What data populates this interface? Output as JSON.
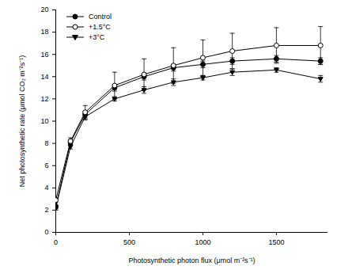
{
  "chart_data": {
    "type": "line",
    "x_label": "Photosynthetic photon flux (μmol m⁻²s⁻¹)",
    "y_label": "Net photosynthetic rate (μmol CO₂ m⁻²s⁻¹)",
    "x": [
      0,
      100,
      200,
      400,
      600,
      800,
      1000,
      1200,
      1500,
      1800
    ],
    "series": [
      {
        "name": "Control",
        "color": "#000000",
        "marker": "circle",
        "values": [
          2.3,
          8.1,
          10.6,
          13.0,
          14.0,
          14.8,
          15.1,
          15.4,
          15.6,
          15.4
        ],
        "errors": [
          0.2,
          0.2,
          0.3,
          0.3,
          0.3,
          0.3,
          0.3,
          0.3,
          0.3,
          0.3
        ]
      },
      {
        "name": "+1.5°C",
        "color": "#000000",
        "marker": "open_circle",
        "values": [
          2.9,
          8.2,
          10.8,
          13.2,
          14.2,
          15.0,
          15.7,
          16.3,
          16.8,
          16.8
        ],
        "errors": [
          0.2,
          0.3,
          0.6,
          1.2,
          1.4,
          1.6,
          1.6,
          1.6,
          1.6,
          1.7
        ]
      },
      {
        "name": "+3°C",
        "color": "#000000",
        "marker": "triangle_down",
        "values": [
          2.2,
          7.7,
          10.4,
          12.0,
          12.8,
          13.5,
          13.9,
          14.4,
          14.6,
          13.8
        ],
        "errors": [
          0.2,
          0.2,
          0.3,
          0.2,
          0.3,
          0.3,
          0.2,
          0.3,
          0.2,
          0.3
        ]
      }
    ],
    "xlim": [
      0,
      1850
    ],
    "ylim": [
      0,
      20
    ],
    "xticks": [
      0,
      500,
      1000,
      1500
    ],
    "yticks": [
      0,
      2,
      4,
      6,
      8,
      10,
      12,
      14,
      16,
      18,
      20
    ],
    "legend": "upper left",
    "grid": false
  }
}
